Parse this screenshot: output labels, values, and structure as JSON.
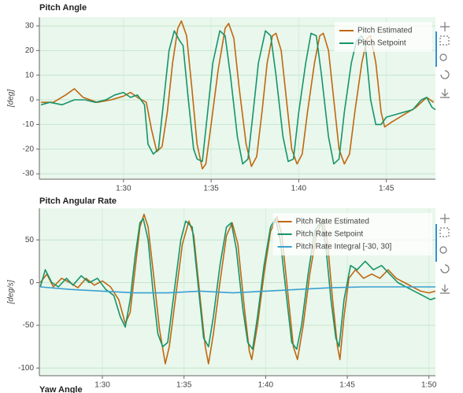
{
  "chart_data": [
    {
      "type": "line",
      "title": "Pitch Angle",
      "y_label": "[deg]",
      "xlim": [
        85.2,
        107.8
      ],
      "xticks": [
        {
          "value": 90,
          "label": "1:30"
        },
        {
          "value": 95,
          "label": "1:35"
        },
        {
          "value": 100,
          "label": "1:40"
        },
        {
          "value": 105,
          "label": "1:45"
        }
      ],
      "ylim": [
        -32.2,
        33.5
      ],
      "yticks": [
        -30,
        -20,
        -10,
        0,
        10,
        20,
        30
      ],
      "grid": true,
      "legend": "top-right",
      "series": [
        {
          "name": "Pitch Estimated",
          "color": "#c0670f",
          "x": [
            85.3,
            86,
            86.7,
            87.2,
            87.7,
            88.5,
            89.3,
            90,
            90.4,
            90.8,
            91.3,
            91.6,
            91.9,
            92.2,
            92.5,
            92.8,
            93.1,
            93.3,
            93.6,
            93.9,
            94.2,
            94.5,
            94.7,
            95.0,
            95.4,
            95.8,
            96.0,
            96.3,
            96.6,
            97.0,
            97.3,
            97.6,
            97.9,
            98.2,
            98.5,
            98.7,
            99.0,
            99.3,
            99.6,
            99.9,
            100.2,
            100.5,
            100.9,
            101.2,
            101.4,
            101.7,
            102.0,
            102.3,
            102.6,
            102.9,
            103.2,
            103.6,
            103.9,
            104.1,
            104.4,
            104.7,
            104.9,
            105.3,
            106,
            106.7,
            107.3,
            107.7
          ],
          "values": [
            -1,
            -1,
            2,
            4.5,
            1,
            -1,
            0,
            1.5,
            3,
            1,
            -1,
            -12,
            -21,
            -19,
            -5,
            15,
            29,
            32,
            26,
            5,
            -18,
            -28,
            -26,
            -10,
            12,
            29,
            31,
            25,
            5,
            -18,
            -27,
            -23,
            -5,
            15,
            26,
            27,
            20,
            0,
            -20,
            -26,
            -22,
            -5,
            15,
            26,
            27,
            20,
            0,
            -20,
            -26,
            -22,
            -5,
            15,
            25,
            26,
            15,
            -5,
            -11,
            -9,
            -6,
            -3,
            1,
            -1
          ]
        },
        {
          "name": "Pitch Setpoint",
          "color": "#17936b",
          "x": [
            85.3,
            85.8,
            86.5,
            87.2,
            87.8,
            88.4,
            89,
            89.5,
            90,
            90.4,
            90.8,
            91.2,
            91.4,
            91.7,
            92.0,
            92.3,
            92.6,
            92.9,
            93.2,
            93.4,
            93.7,
            94.0,
            94.2,
            94.5,
            94.8,
            95.1,
            95.5,
            95.8,
            96.1,
            96.5,
            96.8,
            97.1,
            97.4,
            97.7,
            98.1,
            98.4,
            98.7,
            99.1,
            99.4,
            99.7,
            100.0,
            100.4,
            100.7,
            101.0,
            101.3,
            101.7,
            102.0,
            102.3,
            102.6,
            103.0,
            103.3,
            103.6,
            103.8,
            104.1,
            104.4,
            104.7,
            105,
            105.5,
            106,
            106.5,
            107,
            107.3,
            107.6,
            107.8
          ],
          "values": [
            -2,
            -1,
            -2,
            0,
            0,
            -1,
            0,
            2,
            3,
            1,
            2,
            -2,
            -18,
            -22,
            -20,
            0,
            20,
            28,
            24,
            22,
            0,
            -20,
            -24,
            -25,
            -5,
            15,
            28,
            26,
            10,
            -15,
            -26,
            -24,
            -5,
            15,
            28,
            26,
            10,
            -15,
            -25,
            -24,
            -5,
            15,
            27,
            26,
            10,
            -15,
            -26,
            -24,
            -5,
            15,
            24,
            26,
            22,
            0,
            -10,
            -10,
            -7,
            -6,
            -5,
            -4,
            0,
            1,
            -3,
            -4
          ]
        }
      ]
    },
    {
      "type": "line",
      "title": "Pitch Angular Rate",
      "y_label": "[deg/s]",
      "xlim": [
        86.14,
        110.4
      ],
      "xticks": [
        {
          "value": 90,
          "label": "1:30"
        },
        {
          "value": 95,
          "label": "1:35"
        },
        {
          "value": 100,
          "label": "1:40"
        },
        {
          "value": 105,
          "label": "1:45"
        },
        {
          "value": 110,
          "label": "1:50"
        }
      ],
      "ylim": [
        -109,
        87
      ],
      "yticks": [
        -100,
        -50,
        0,
        50
      ],
      "grid": true,
      "legend": "top-right",
      "series": [
        {
          "name": "Pitch Rate Estimated",
          "color": "#c0670f",
          "x": [
            86.2,
            86.6,
            87,
            87.5,
            88,
            88.5,
            89,
            89.5,
            90,
            90.5,
            91,
            91.4,
            91.7,
            92,
            92.3,
            92.55,
            92.8,
            93.1,
            93.5,
            93.85,
            94.1,
            94.5,
            94.9,
            95.3,
            95.6,
            96,
            96.3,
            96.5,
            96.8,
            97.2,
            97.6,
            97.95,
            98.3,
            98.7,
            99.0,
            99.15,
            99.5,
            99.9,
            100.3,
            100.7,
            101.0,
            101.4,
            101.7,
            101.95,
            102.3,
            102.7,
            103.1,
            103.5,
            103.8,
            104.1,
            104.4,
            104.55,
            104.8,
            105.1,
            105.5,
            106,
            106.5,
            107,
            107.5,
            108,
            108.5,
            109,
            109.5,
            110,
            110.4
          ],
          "values": [
            0,
            10,
            -5,
            5,
            0,
            -6,
            5,
            -3,
            2,
            -5,
            -20,
            -48,
            -35,
            15,
            65,
            80,
            65,
            15,
            -55,
            -95,
            -75,
            -15,
            45,
            72,
            55,
            -20,
            -75,
            -95,
            -60,
            0,
            55,
            70,
            45,
            -30,
            -80,
            -90,
            -50,
            10,
            60,
            77,
            55,
            -20,
            -75,
            -90,
            -50,
            10,
            55,
            75,
            45,
            -20,
            -75,
            -90,
            -40,
            5,
            15,
            5,
            10,
            5,
            15,
            5,
            0,
            -5,
            -10,
            -12,
            -10
          ]
        },
        {
          "name": "Pitch Rate Setpoint",
          "color": "#17936b",
          "x": [
            86.2,
            86.5,
            86.9,
            87.3,
            87.8,
            88.2,
            88.7,
            89.2,
            89.7,
            90.2,
            90.7,
            91.1,
            91.4,
            91.7,
            92,
            92.3,
            92.5,
            92.8,
            93.1,
            93.4,
            93.7,
            94.0,
            94.4,
            94.8,
            95.1,
            95.5,
            95.9,
            96.2,
            96.5,
            96.8,
            97.2,
            97.6,
            97.9,
            98.2,
            98.6,
            98.9,
            99.2,
            99.5,
            99.9,
            100.3,
            100.6,
            100.9,
            101.3,
            101.6,
            101.9,
            102.2,
            102.6,
            103.0,
            103.4,
            103.7,
            104.0,
            104.3,
            104.5,
            104.8,
            105.2,
            105.6,
            106.1,
            106.6,
            107.1,
            107.6,
            108.1,
            108.6,
            109.1,
            109.6,
            110.1,
            110.4
          ],
          "values": [
            -5,
            15,
            0,
            -5,
            5,
            -3,
            8,
            0,
            5,
            -8,
            -15,
            -40,
            -52,
            -20,
            30,
            70,
            75,
            50,
            -10,
            -60,
            -75,
            -70,
            -10,
            50,
            72,
            65,
            -10,
            -65,
            -75,
            -40,
            20,
            65,
            70,
            40,
            -30,
            -70,
            -78,
            -40,
            20,
            65,
            75,
            50,
            -20,
            -70,
            -78,
            -50,
            10,
            60,
            72,
            40,
            -20,
            -65,
            -75,
            -20,
            20,
            15,
            25,
            15,
            20,
            10,
            0,
            -5,
            -10,
            -15,
            -20,
            -18
          ]
        },
        {
          "name": "Pitch Rate Integral [-30, 30]",
          "color": "#3aa0d0",
          "x": [
            86.2,
            88,
            90,
            92,
            94,
            96,
            98,
            100,
            102,
            104,
            106,
            108,
            110.4
          ],
          "values": [
            -5,
            -8,
            -10,
            -12,
            -12,
            -10,
            -12,
            -10,
            -8,
            -6,
            -5,
            -5,
            -5
          ]
        }
      ]
    }
  ],
  "next_section_title": "Yaw Angle"
}
